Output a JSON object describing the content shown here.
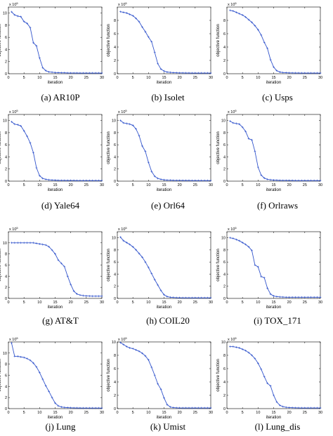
{
  "chart_data": [
    {
      "type": "line",
      "caption": "(a) AR10P",
      "xlabel": "iteration",
      "ylabel": "objective function",
      "exponent": "10",
      "xlim": [
        0,
        30
      ],
      "ylim": [
        0,
        11
      ],
      "xticks": [
        0,
        5,
        10,
        15,
        20,
        25,
        30
      ],
      "yticks": [
        0,
        2,
        4,
        6,
        8,
        10
      ],
      "color": "#3355cc",
      "series": [
        {
          "x": [
            1,
            2,
            3,
            4,
            5,
            6,
            7,
            8,
            9,
            10,
            11,
            12,
            13,
            14,
            15,
            16,
            17,
            18,
            19,
            20,
            21,
            22,
            23,
            24,
            25,
            26,
            27,
            28,
            29,
            30
          ],
          "y": [
            10.2,
            9.7,
            9.5,
            9.4,
            8.6,
            8.3,
            7.6,
            5.1,
            4.6,
            2.6,
            1.0,
            0.5,
            0.3,
            0.25,
            0.2,
            0.18,
            0.15,
            0.15,
            0.13,
            0.12,
            0.12,
            0.12,
            0.11,
            0.11,
            0.11,
            0.11,
            0.11,
            0.11,
            0.11,
            0.11
          ]
        }
      ]
    },
    {
      "type": "line",
      "caption": "(b) Isolet",
      "xlabel": "iteration",
      "ylabel": "objective function",
      "exponent": "10",
      "xlim": [
        0,
        30
      ],
      "ylim": [
        0,
        10
      ],
      "xticks": [
        0,
        5,
        10,
        15,
        20,
        25,
        30
      ],
      "yticks": [
        0,
        2,
        4,
        6,
        8
      ],
      "color": "#3355cc",
      "series": [
        {
          "x": [
            1,
            2,
            3,
            4,
            5,
            6,
            7,
            8,
            9,
            10,
            11,
            12,
            13,
            14,
            15,
            16,
            17,
            18,
            19,
            20,
            21,
            22,
            23,
            24,
            25,
            26,
            27,
            28,
            29,
            30
          ],
          "y": [
            9.3,
            9.2,
            9.1,
            8.9,
            8.7,
            8.3,
            7.8,
            7.0,
            6.3,
            5.5,
            4.8,
            3.2,
            1.5,
            0.7,
            0.4,
            0.25,
            0.2,
            0.16,
            0.14,
            0.12,
            0.12,
            0.11,
            0.11,
            0.1,
            0.1,
            0.1,
            0.1,
            0.1,
            0.1,
            0.1
          ]
        }
      ]
    },
    {
      "type": "line",
      "caption": "(c) Usps",
      "xlabel": "iteration",
      "ylabel": "objective function",
      "exponent": "10",
      "xlim": [
        0,
        30
      ],
      "ylim": [
        0,
        10
      ],
      "xticks": [
        0,
        5,
        10,
        15,
        20,
        25,
        30
      ],
      "yticks": [
        0,
        2,
        4,
        6,
        8
      ],
      "color": "#3355cc",
      "series": [
        {
          "x": [
            1,
            2,
            3,
            4,
            5,
            6,
            7,
            8,
            9,
            10,
            11,
            12,
            13,
            14,
            15,
            16,
            17,
            18,
            19,
            20,
            21,
            22,
            23,
            24,
            25,
            26,
            27,
            28,
            29,
            30
          ],
          "y": [
            9.5,
            9.4,
            9.2,
            9.0,
            8.8,
            8.5,
            8.1,
            7.7,
            7.2,
            6.6,
            5.8,
            4.7,
            3.8,
            2.1,
            1.0,
            0.45,
            0.25,
            0.18,
            0.15,
            0.13,
            0.12,
            0.11,
            0.11,
            0.1,
            0.1,
            0.1,
            0.1,
            0.1,
            0.1,
            0.1
          ]
        }
      ]
    },
    {
      "type": "line",
      "caption": "(d) Yale64",
      "xlabel": "iteration",
      "ylabel": "objective function",
      "exponent": "10",
      "xlim": [
        0,
        30
      ],
      "ylim": [
        0,
        11
      ],
      "xticks": [
        0,
        5,
        10,
        15,
        20,
        25,
        30
      ],
      "yticks": [
        0,
        2,
        4,
        6,
        8,
        10
      ],
      "color": "#3355cc",
      "series": [
        {
          "x": [
            1,
            2,
            3,
            4,
            5,
            6,
            7,
            8,
            9,
            10,
            11,
            12,
            13,
            14,
            15,
            16,
            17,
            18,
            19,
            20,
            21,
            22,
            23,
            24,
            25,
            26,
            27,
            28,
            29,
            30
          ],
          "y": [
            9.8,
            9.4,
            9.3,
            9.1,
            8.3,
            7.4,
            6.3,
            4.7,
            2.2,
            0.9,
            0.45,
            0.3,
            0.22,
            0.18,
            0.15,
            0.13,
            0.12,
            0.12,
            0.11,
            0.11,
            0.11,
            0.1,
            0.1,
            0.1,
            0.1,
            0.1,
            0.1,
            0.1,
            0.1,
            0.1
          ]
        }
      ]
    },
    {
      "type": "line",
      "caption": "(e) Orl64",
      "xlabel": "iteration",
      "ylabel": "objective function",
      "exponent": "10",
      "xlim": [
        0,
        30
      ],
      "ylim": [
        0,
        11
      ],
      "xticks": [
        0,
        5,
        10,
        15,
        20,
        25,
        30
      ],
      "yticks": [
        0,
        2,
        4,
        6,
        8,
        10
      ],
      "color": "#3355cc",
      "series": [
        {
          "x": [
            1,
            2,
            3,
            4,
            5,
            6,
            7,
            8,
            9,
            10,
            11,
            12,
            13,
            14,
            15,
            16,
            17,
            18,
            19,
            20,
            21,
            22,
            23,
            24,
            25,
            26,
            27,
            28,
            29,
            30
          ],
          "y": [
            10.0,
            9.6,
            9.5,
            9.4,
            9.2,
            8.6,
            7.5,
            5.8,
            4.9,
            3.1,
            1.6,
            0.8,
            0.45,
            0.3,
            0.22,
            0.17,
            0.15,
            0.13,
            0.12,
            0.12,
            0.11,
            0.11,
            0.11,
            0.1,
            0.1,
            0.1,
            0.1,
            0.1,
            0.1,
            0.1
          ]
        }
      ]
    },
    {
      "type": "line",
      "caption": "(f) Orlraws",
      "xlabel": "iteration",
      "ylabel": "objective function",
      "exponent": "10",
      "xlim": [
        0,
        30
      ],
      "ylim": [
        0,
        11
      ],
      "xticks": [
        0,
        5,
        10,
        15,
        20,
        25,
        30
      ],
      "yticks": [
        0,
        2,
        4,
        6,
        8,
        10
      ],
      "color": "#3355cc",
      "series": [
        {
          "x": [
            1,
            2,
            3,
            4,
            5,
            6,
            7,
            8,
            9,
            10,
            11,
            12,
            13,
            14,
            15,
            16,
            17,
            18,
            19,
            20,
            21,
            22,
            23,
            24,
            25,
            26,
            27,
            28,
            29,
            30
          ],
          "y": [
            9.9,
            9.6,
            9.5,
            9.4,
            8.9,
            8.2,
            7.0,
            6.8,
            4.9,
            2.3,
            1.0,
            0.5,
            0.3,
            0.22,
            0.18,
            0.15,
            0.13,
            0.12,
            0.12,
            0.11,
            0.11,
            0.1,
            0.1,
            0.1,
            0.1,
            0.1,
            0.1,
            0.1,
            0.1,
            0.1
          ]
        }
      ]
    },
    {
      "type": "line",
      "caption": "(g) AT&T",
      "xlabel": "iteration",
      "ylabel": "objective function",
      "exponent": "10",
      "xlim": [
        0,
        30
      ],
      "ylim": [
        0,
        12
      ],
      "xticks": [
        0,
        5,
        10,
        15,
        20,
        25,
        30
      ],
      "yticks": [
        0,
        2,
        4,
        6,
        8,
        10
      ],
      "color": "#3355cc",
      "series": [
        {
          "x": [
            1,
            2,
            3,
            4,
            5,
            6,
            7,
            8,
            9,
            10,
            11,
            12,
            13,
            14,
            15,
            16,
            17,
            18,
            19,
            20,
            21,
            22,
            23,
            24,
            25,
            26,
            27,
            28,
            29,
            30
          ],
          "y": [
            10.0,
            10.0,
            10.0,
            10.0,
            10.0,
            10.0,
            10.0,
            10.0,
            9.9,
            9.8,
            9.7,
            9.6,
            9.3,
            8.7,
            8.0,
            6.9,
            6.3,
            5.7,
            4.0,
            2.5,
            1.3,
            0.8,
            0.6,
            0.5,
            0.45,
            0.42,
            0.4,
            0.4,
            0.4,
            0.4
          ]
        }
      ]
    },
    {
      "type": "line",
      "caption": "(h) COIL20",
      "xlabel": "iteration",
      "ylabel": "objective function",
      "exponent": "10",
      "xlim": [
        0,
        30
      ],
      "ylim": [
        0,
        11
      ],
      "xticks": [
        0,
        5,
        10,
        15,
        20,
        25,
        30
      ],
      "yticks": [
        0,
        2,
        4,
        6,
        8,
        10
      ],
      "color": "#3355cc",
      "series": [
        {
          "x": [
            1,
            2,
            3,
            4,
            5,
            6,
            7,
            8,
            9,
            10,
            11,
            12,
            13,
            14,
            15,
            16,
            17,
            18,
            19,
            20,
            21,
            22,
            23,
            24,
            25,
            26,
            27,
            28,
            29,
            30
          ],
          "y": [
            10.1,
            9.5,
            9.2,
            8.9,
            8.5,
            8.0,
            7.4,
            6.8,
            6.0,
            5.1,
            4.1,
            3.1,
            2.2,
            1.3,
            0.6,
            0.3,
            0.2,
            0.15,
            0.12,
            0.11,
            0.1,
            0.1,
            0.1,
            0.1,
            0.1,
            0.1,
            0.1,
            0.1,
            0.1,
            0.1
          ]
        }
      ]
    },
    {
      "type": "line",
      "caption": "(i) TOX_171",
      "xlabel": "iteration",
      "ylabel": "objective function",
      "exponent": "10",
      "xlim": [
        0,
        30
      ],
      "ylim": [
        0,
        11
      ],
      "xticks": [
        0,
        5,
        10,
        15,
        20,
        25,
        30
      ],
      "yticks": [
        0,
        2,
        4,
        6,
        8,
        10
      ],
      "color": "#3355cc",
      "series": [
        {
          "x": [
            1,
            2,
            3,
            4,
            5,
            6,
            7,
            8,
            9,
            10,
            11,
            12,
            13,
            14,
            15,
            16,
            17,
            18,
            19,
            20,
            21,
            22,
            23,
            24,
            25,
            26,
            27,
            28,
            29,
            30
          ],
          "y": [
            10.0,
            9.9,
            9.7,
            9.5,
            9.2,
            8.9,
            8.5,
            7.9,
            5.5,
            5.2,
            3.6,
            3.4,
            1.7,
            0.7,
            0.4,
            0.3,
            0.25,
            0.22,
            0.2,
            0.2,
            0.2,
            0.2,
            0.2,
            0.2,
            0.2,
            0.2,
            0.2,
            0.2,
            0.2,
            0.2
          ]
        }
      ]
    },
    {
      "type": "line",
      "caption": "(j) Lung",
      "xlabel": "iteration",
      "ylabel": "objective function",
      "exponent": "10",
      "xlim": [
        0,
        30
      ],
      "ylim": [
        0,
        12
      ],
      "xticks": [
        0,
        5,
        10,
        15,
        20,
        25,
        30
      ],
      "yticks": [
        0,
        2,
        4,
        6,
        8,
        10
      ],
      "color": "#3355cc",
      "series": [
        {
          "x": [
            1,
            2,
            3,
            4,
            5,
            6,
            7,
            8,
            9,
            10,
            11,
            12,
            13,
            14,
            15,
            16,
            17,
            18,
            19,
            20,
            21,
            22,
            23,
            24,
            25,
            26,
            27,
            28,
            29,
            30
          ],
          "y": [
            11.8,
            9.4,
            9.4,
            9.3,
            9.2,
            9.0,
            8.7,
            8.2,
            7.5,
            6.5,
            5.3,
            4.1,
            3.1,
            2.0,
            1.0,
            0.5,
            0.3,
            0.22,
            0.18,
            0.15,
            0.13,
            0.12,
            0.11,
            0.1,
            0.1,
            0.1,
            0.1,
            0.1,
            0.1,
            0.1
          ]
        }
      ]
    },
    {
      "type": "line",
      "caption": "(k) Umist",
      "xlabel": "iteration",
      "ylabel": "objective function",
      "exponent": "10",
      "xlim": [
        0,
        30
      ],
      "ylim": [
        0,
        10
      ],
      "xticks": [
        0,
        5,
        10,
        15,
        20,
        25,
        30
      ],
      "yticks": [
        0,
        2,
        4,
        6,
        8,
        10
      ],
      "color": "#3355cc",
      "series": [
        {
          "x": [
            1,
            2,
            3,
            4,
            5,
            6,
            7,
            8,
            9,
            10,
            11,
            12,
            13,
            14,
            15,
            16,
            17,
            18,
            19,
            20,
            21,
            22,
            23,
            24,
            25,
            26,
            27,
            28,
            29,
            30
          ],
          "y": [
            9.9,
            9.6,
            9.3,
            9.1,
            9.0,
            8.8,
            8.6,
            8.3,
            7.9,
            7.3,
            6.2,
            5.0,
            3.7,
            2.9,
            1.6,
            0.6,
            0.25,
            0.15,
            0.12,
            0.1,
            0.1,
            0.1,
            0.1,
            0.1,
            0.1,
            0.1,
            0.1,
            0.1,
            0.1,
            0.1
          ]
        }
      ]
    },
    {
      "type": "line",
      "caption": "(l) Lung_dis",
      "xlabel": "iteration",
      "ylabel": "objective function",
      "exponent": "10",
      "xlim": [
        0,
        30
      ],
      "ylim": [
        0,
        10
      ],
      "xticks": [
        0,
        5,
        10,
        15,
        20,
        25,
        30
      ],
      "yticks": [
        0,
        2,
        4,
        6,
        8,
        10
      ],
      "color": "#3355cc",
      "series": [
        {
          "x": [
            1,
            2,
            3,
            4,
            5,
            6,
            7,
            8,
            9,
            10,
            11,
            12,
            13,
            14,
            15,
            16,
            17,
            18,
            19,
            20,
            21,
            22,
            23,
            24,
            25,
            26,
            27,
            28,
            29,
            30
          ],
          "y": [
            9.3,
            9.3,
            9.2,
            9.1,
            8.9,
            8.7,
            8.4,
            8.0,
            7.5,
            6.8,
            5.9,
            4.8,
            3.8,
            3.4,
            2.0,
            1.0,
            0.5,
            0.3,
            0.2,
            0.16,
            0.14,
            0.12,
            0.11,
            0.1,
            0.1,
            0.1,
            0.1,
            0.1,
            0.1,
            0.1
          ]
        }
      ]
    }
  ]
}
